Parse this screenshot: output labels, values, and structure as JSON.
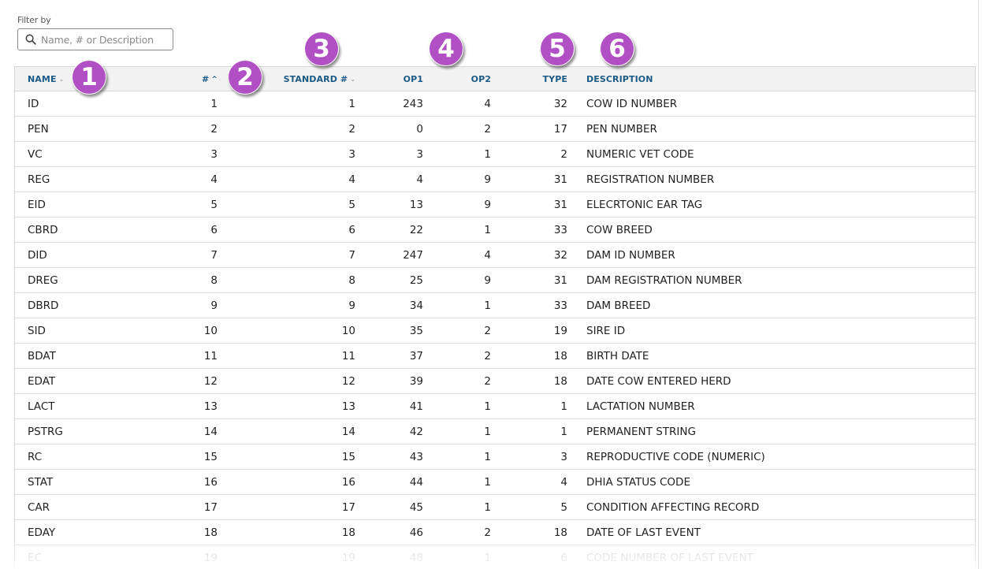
{
  "filter": {
    "label": "Filter by",
    "placeholder": "Name, # or Description",
    "value": ""
  },
  "columns": {
    "name": "NAME",
    "num": "#",
    "standard": "STANDARD #",
    "op1": "OP1",
    "op2": "OP2",
    "type": "TYPE",
    "description": "DESCRIPTION"
  },
  "sort": {
    "column": "#",
    "direction": "ascending"
  },
  "callouts": [
    "1",
    "2",
    "3",
    "4",
    "5",
    "6"
  ],
  "callout_color": "#b14fc5",
  "header_color": "#1b5a85",
  "rows": [
    {
      "name": "ID",
      "num": "1",
      "standard": "1",
      "op1": "243",
      "op2": "4",
      "type": "32",
      "description": "COW ID NUMBER"
    },
    {
      "name": "PEN",
      "num": "2",
      "standard": "2",
      "op1": "0",
      "op2": "2",
      "type": "17",
      "description": "PEN NUMBER"
    },
    {
      "name": "VC",
      "num": "3",
      "standard": "3",
      "op1": "3",
      "op2": "1",
      "type": "2",
      "description": "NUMERIC VET CODE"
    },
    {
      "name": "REG",
      "num": "4",
      "standard": "4",
      "op1": "4",
      "op2": "9",
      "type": "31",
      "description": "REGISTRATION NUMBER"
    },
    {
      "name": "EID",
      "num": "5",
      "standard": "5",
      "op1": "13",
      "op2": "9",
      "type": "31",
      "description": "ELECRTONIC EAR TAG"
    },
    {
      "name": "CBRD",
      "num": "6",
      "standard": "6",
      "op1": "22",
      "op2": "1",
      "type": "33",
      "description": "COW BREED"
    },
    {
      "name": "DID",
      "num": "7",
      "standard": "7",
      "op1": "247",
      "op2": "4",
      "type": "32",
      "description": "DAM ID NUMBER"
    },
    {
      "name": "DREG",
      "num": "8",
      "standard": "8",
      "op1": "25",
      "op2": "9",
      "type": "31",
      "description": "DAM REGISTRATION NUMBER"
    },
    {
      "name": "DBRD",
      "num": "9",
      "standard": "9",
      "op1": "34",
      "op2": "1",
      "type": "33",
      "description": "DAM BREED"
    },
    {
      "name": "SID",
      "num": "10",
      "standard": "10",
      "op1": "35",
      "op2": "2",
      "type": "19",
      "description": "SIRE ID"
    },
    {
      "name": "BDAT",
      "num": "11",
      "standard": "11",
      "op1": "37",
      "op2": "2",
      "type": "18",
      "description": "BIRTH DATE"
    },
    {
      "name": "EDAT",
      "num": "12",
      "standard": "12",
      "op1": "39",
      "op2": "2",
      "type": "18",
      "description": "DATE COW ENTERED HERD"
    },
    {
      "name": "LACT",
      "num": "13",
      "standard": "13",
      "op1": "41",
      "op2": "1",
      "type": "1",
      "description": "LACTATION NUMBER"
    },
    {
      "name": "PSTRG",
      "num": "14",
      "standard": "14",
      "op1": "42",
      "op2": "1",
      "type": "1",
      "description": "PERMANENT STRING"
    },
    {
      "name": "RC",
      "num": "15",
      "standard": "15",
      "op1": "43",
      "op2": "1",
      "type": "3",
      "description": "REPRODUCTIVE CODE (NUMERIC)"
    },
    {
      "name": "STAT",
      "num": "16",
      "standard": "16",
      "op1": "44",
      "op2": "1",
      "type": "4",
      "description": "DHIA STATUS CODE"
    },
    {
      "name": "CAR",
      "num": "17",
      "standard": "17",
      "op1": "45",
      "op2": "1",
      "type": "5",
      "description": "CONDITION AFFECTING RECORD"
    },
    {
      "name": "EDAY",
      "num": "18",
      "standard": "18",
      "op1": "46",
      "op2": "2",
      "type": "18",
      "description": "DATE OF LAST EVENT"
    },
    {
      "name": "EC",
      "num": "19",
      "standard": "19",
      "op1": "48",
      "op2": "1",
      "type": "6",
      "description": "CODE NUMBER OF LAST EVENT"
    }
  ]
}
